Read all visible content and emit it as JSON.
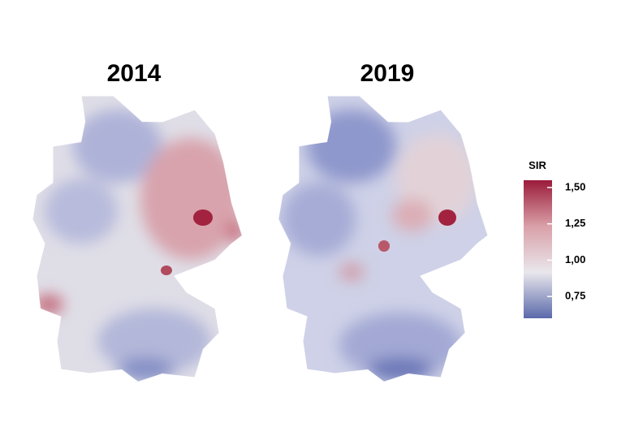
{
  "maps": [
    {
      "title": "2014"
    },
    {
      "title": "2019"
    }
  ],
  "colorbar": {
    "title": "SIR",
    "lim": [
      0.6,
      1.55
    ],
    "ticks": [
      {
        "value": 1.5,
        "label": "1,50"
      },
      {
        "value": 1.25,
        "label": "1,25"
      },
      {
        "value": 1.0,
        "label": "1,00"
      },
      {
        "value": 0.75,
        "label": "0,75"
      }
    ],
    "colors": [
      "#5a69aa",
      "#e9e7ec",
      "#d9a0a8",
      "#9b1b3b"
    ]
  }
}
